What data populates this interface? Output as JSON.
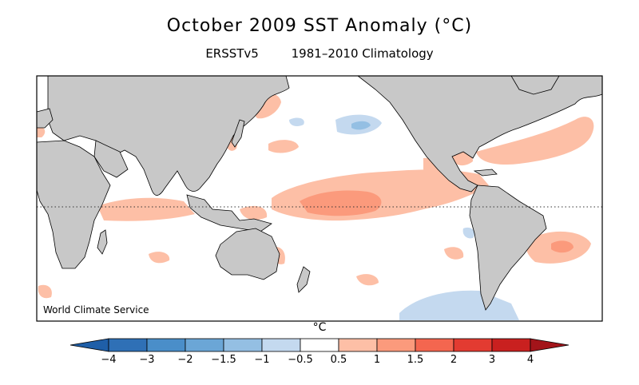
{
  "title": "October 2009 SST Anomaly (°C)",
  "subtitle": {
    "dataset": "ERSSTv5",
    "climatology": "1981–2010 Climatology"
  },
  "credit": "World Climate Service",
  "colorbar": {
    "unit": "°C",
    "ticks": [
      "−4",
      "−3",
      "−2",
      "−1.5",
      "−1",
      "−0.5",
      "0.5",
      "1",
      "1.5",
      "2",
      "3",
      "4"
    ],
    "colors": [
      "#1f5fa8",
      "#2f70b6",
      "#4a8ec9",
      "#6ba6d6",
      "#94bfe3",
      "#c4d9ef",
      "#ffffff",
      "#fdbfa6",
      "#fb9a7c",
      "#f4664f",
      "#e33b31",
      "#c9201f",
      "#a3141a"
    ]
  },
  "anomaly_colors": {
    "cold_light": "#c4d9ef",
    "cold_mid": "#94bfe3",
    "warm_light": "#fdbfa6",
    "warm_mid": "#fb9a7c",
    "warm_strong": "#f4664f"
  },
  "land_color": "#c8c8c8"
}
